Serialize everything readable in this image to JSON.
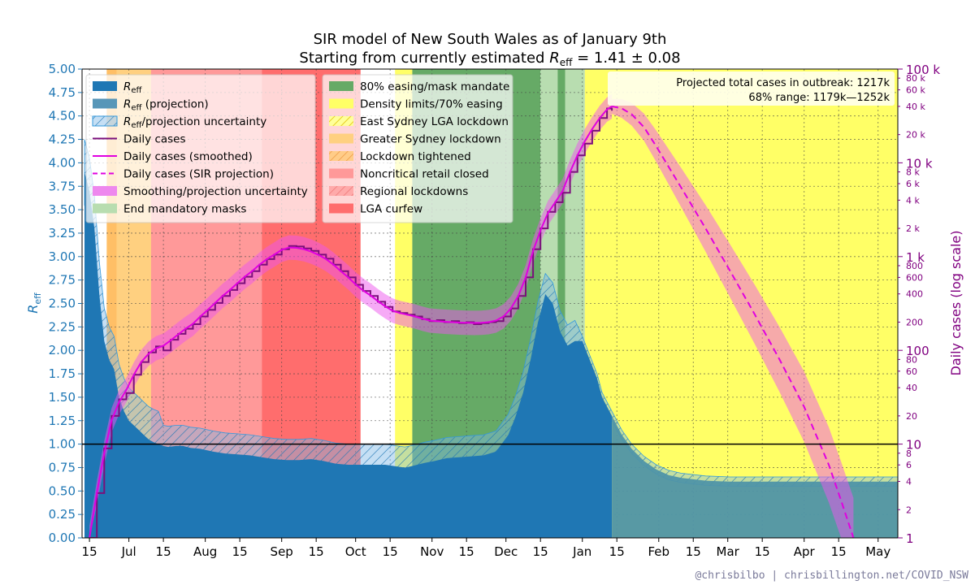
{
  "chart_data": {
    "type": "area",
    "title": "SIR model of New South Wales as of January 9th",
    "subtitle": "Starting from currently estimated R_eff = 1.41 ± 0.08",
    "subtitle_prefix": "Starting from currently estimated ",
    "subtitle_symbol": "R",
    "subtitle_sub": "eff",
    "subtitle_suffix": " = 1.41 ± 0.08",
    "ylabel_left": "R",
    "ylabel_left_sub": "eff",
    "ylabel_right": "Daily cases (log scale)",
    "ylim_left": [
      0,
      5
    ],
    "ylim_right_log": [
      1,
      100000
    ],
    "xlim_days": [
      -3,
      328
    ],
    "x_origin": "2021-06-15",
    "left_ticks": [
      "0.00",
      "0.25",
      "0.50",
      "0.75",
      "1.00",
      "1.25",
      "1.50",
      "1.75",
      "2.00",
      "2.25",
      "2.50",
      "2.75",
      "3.00",
      "3.25",
      "3.50",
      "3.75",
      "4.00",
      "4.25",
      "4.50",
      "4.75",
      "5.00"
    ],
    "x_ticks": [
      {
        "d": 0,
        "label": "15"
      },
      {
        "d": 16,
        "label": "Jul"
      },
      {
        "d": 30,
        "label": "15"
      },
      {
        "d": 47,
        "label": "Aug"
      },
      {
        "d": 61,
        "label": "15"
      },
      {
        "d": 78,
        "label": "Sep"
      },
      {
        "d": 92,
        "label": "15"
      },
      {
        "d": 108,
        "label": "Oct"
      },
      {
        "d": 122,
        "label": "15"
      },
      {
        "d": 139,
        "label": "Nov"
      },
      {
        "d": 153,
        "label": "15"
      },
      {
        "d": 169,
        "label": "Dec"
      },
      {
        "d": 183,
        "label": "15"
      },
      {
        "d": 200,
        "label": "Jan"
      },
      {
        "d": 214,
        "label": "15"
      },
      {
        "d": 231,
        "label": "Feb"
      },
      {
        "d": 245,
        "label": "15"
      },
      {
        "d": 259,
        "label": "Mar"
      },
      {
        "d": 273,
        "label": "15"
      },
      {
        "d": 290,
        "label": "Apr"
      },
      {
        "d": 304,
        "label": "15"
      },
      {
        "d": 320,
        "label": "May"
      }
    ],
    "right_major_ticks": [
      {
        "v": 1,
        "label": "1"
      },
      {
        "v": 10,
        "label": "10"
      },
      {
        "v": 100,
        "label": "100"
      },
      {
        "v": 1000,
        "label": "1 k"
      },
      {
        "v": 10000,
        "label": "10 k"
      },
      {
        "v": 100000,
        "label": "100 k"
      }
    ],
    "right_minor_ticks": [
      {
        "v": 2,
        "label": "2"
      },
      {
        "v": 4,
        "label": "4"
      },
      {
        "v": 6,
        "label": "6"
      },
      {
        "v": 8,
        "label": "8"
      },
      {
        "v": 20,
        "label": "20"
      },
      {
        "v": 40,
        "label": "40"
      },
      {
        "v": 60,
        "label": "60"
      },
      {
        "v": 80,
        "label": "80"
      },
      {
        "v": 200,
        "label": "200"
      },
      {
        "v": 400,
        "label": "400"
      },
      {
        "v": 600,
        "label": "600"
      },
      {
        "v": 800,
        "label": "800"
      },
      {
        "v": 2000,
        "label": "2 k"
      },
      {
        "v": 4000,
        "label": "4 k"
      },
      {
        "v": 6000,
        "label": "6 k"
      },
      {
        "v": 8000,
        "label": "8 k"
      },
      {
        "v": 20000,
        "label": "20 k"
      },
      {
        "v": 40000,
        "label": "40 k"
      },
      {
        "v": 60000,
        "label": "60 k"
      },
      {
        "v": 80000,
        "label": "80 k"
      }
    ],
    "restriction_periods": [
      {
        "name": "Lockdown tightened",
        "start": 7,
        "end": 25,
        "color": "#ffbf66"
      },
      {
        "name": "Greater Sydney lockdown",
        "start": 11,
        "end": 25,
        "color": "#ffd080"
      },
      {
        "name": "Noncritical retail closed",
        "start": 25,
        "end": 97,
        "color": "#ff9999"
      },
      {
        "name": "LGA curfew",
        "start": 70,
        "end": 110,
        "color": "#ff6d6d"
      },
      {
        "name": "Density limits/70% easing",
        "start": 124,
        "end": 131,
        "color": "#ffff66"
      },
      {
        "name": "80% easing/mask mandate",
        "start": 131,
        "end": 183,
        "color": "#66aa66"
      },
      {
        "name": "End mandatory masks",
        "start": 183,
        "end": 201,
        "color": "#b8ddb0"
      },
      {
        "name": "80% easing/mask mandate",
        "start": 190,
        "end": 193,
        "color": "#66aa66"
      },
      {
        "name": "Density limits/70% easing",
        "start": 201,
        "end": 328,
        "color": "#ffff66"
      }
    ],
    "series": [
      {
        "name": "R_eff",
        "kind": "area",
        "color": "#1f77b4",
        "x": [
          -2,
          0,
          2,
          4,
          6,
          8,
          10,
          12,
          14,
          16,
          18,
          20,
          22,
          24,
          26,
          28,
          30,
          32,
          35,
          38,
          41,
          45,
          50,
          55,
          60,
          65,
          70,
          75,
          80,
          85,
          90,
          95,
          100,
          105,
          110,
          115,
          120,
          125,
          128,
          130,
          133,
          136,
          140,
          145,
          150,
          155,
          160,
          165,
          170,
          173,
          176,
          179,
          182,
          185,
          188,
          191,
          194,
          197,
          200,
          203,
          206,
          208,
          212,
          216,
          220,
          225,
          230,
          235,
          240,
          250,
          260,
          270,
          280,
          290,
          300,
          310,
          320,
          328
        ],
        "values": [
          3.9,
          3.7,
          3.3,
          2.6,
          2.1,
          1.9,
          1.8,
          1.5,
          1.35,
          1.25,
          1.2,
          1.15,
          1.1,
          1.05,
          1.02,
          1.0,
          0.98,
          0.97,
          0.98,
          0.98,
          0.96,
          0.95,
          0.92,
          0.9,
          0.89,
          0.88,
          0.86,
          0.84,
          0.83,
          0.83,
          0.84,
          0.82,
          0.79,
          0.78,
          0.78,
          0.78,
          0.78,
          0.76,
          0.75,
          0.76,
          0.78,
          0.8,
          0.82,
          0.85,
          0.86,
          0.87,
          0.88,
          0.92,
          1.1,
          1.3,
          1.55,
          1.9,
          2.3,
          2.6,
          2.5,
          2.2,
          2.05,
          2.1,
          2.1,
          1.9,
          1.7,
          1.5,
          1.3,
          1.1,
          0.95,
          0.82,
          0.73,
          0.67,
          0.64,
          0.61,
          0.6,
          0.6,
          0.6,
          0.6,
          0.6,
          0.6,
          0.6,
          0.6
        ]
      },
      {
        "name": "Daily cases",
        "kind": "step",
        "color": "#7b0f7b",
        "x": [
          0,
          3,
          6,
          9,
          12,
          15,
          18,
          21,
          24,
          27,
          30,
          33,
          36,
          39,
          42,
          45,
          48,
          51,
          54,
          57,
          60,
          63,
          66,
          69,
          72,
          75,
          78,
          81,
          84,
          87,
          90,
          93,
          96,
          99,
          102,
          105,
          108,
          111,
          114,
          117,
          120,
          123,
          126,
          129,
          132,
          135,
          138,
          141,
          144,
          147,
          150,
          153,
          156,
          159,
          162,
          165,
          168,
          171,
          174,
          177,
          180,
          183,
          186,
          189,
          192,
          195,
          198,
          201,
          204,
          207,
          210,
          212
        ],
        "values": [
          1,
          3,
          9,
          20,
          30,
          35,
          55,
          75,
          95,
          110,
          100,
          130,
          150,
          170,
          190,
          230,
          270,
          320,
          380,
          440,
          520,
          610,
          700,
          820,
          940,
          1050,
          1200,
          1300,
          1280,
          1220,
          1150,
          1050,
          950,
          820,
          700,
          600,
          500,
          430,
          380,
          330,
          290,
          260,
          250,
          240,
          230,
          215,
          205,
          210,
          200,
          205,
          195,
          200,
          190,
          195,
          200,
          205,
          230,
          280,
          380,
          600,
          1200,
          2000,
          3000,
          3800,
          4800,
          8000,
          12000,
          16000,
          22000,
          30000,
          38000,
          36000
        ]
      },
      {
        "name": "Daily cases (smoothed)",
        "kind": "line",
        "color": "#e000e0",
        "x": [
          0,
          3,
          6,
          9,
          12,
          15,
          18,
          21,
          24,
          27,
          30,
          33,
          36,
          39,
          42,
          45,
          48,
          51,
          54,
          57,
          60,
          63,
          66,
          69,
          72,
          75,
          78,
          81,
          84,
          87,
          90,
          93,
          96,
          99,
          102,
          105,
          108,
          111,
          114,
          117,
          120,
          123,
          126,
          129,
          132,
          135,
          138,
          141,
          144,
          147,
          150,
          153,
          156,
          159,
          162,
          165,
          168,
          171,
          174,
          177,
          180,
          183,
          186,
          189,
          192,
          195,
          198,
          201,
          204,
          207,
          210,
          212
        ],
        "values": [
          1,
          3,
          8,
          18,
          28,
          38,
          55,
          75,
          92,
          105,
          112,
          128,
          148,
          170,
          192,
          230,
          270,
          320,
          380,
          440,
          520,
          610,
          700,
          820,
          940,
          1050,
          1180,
          1250,
          1240,
          1200,
          1130,
          1040,
          940,
          820,
          700,
          600,
          505,
          435,
          385,
          335,
          295,
          265,
          250,
          240,
          230,
          218,
          208,
          205,
          202,
          200,
          198,
          197,
          196,
          197,
          200,
          208,
          230,
          280,
          380,
          600,
          1150,
          1900,
          2900,
          3800,
          5000,
          8000,
          12000,
          17000,
          23000,
          30000,
          37000,
          40000
        ]
      },
      {
        "name": "Daily cases (SIR projection)",
        "kind": "dashed",
        "color": "#e000e0",
        "x": [
          212,
          216,
          220,
          225,
          230,
          240,
          250,
          260,
          270,
          280,
          290,
          300,
          305,
          310
        ],
        "values": [
          40000,
          38000,
          33000,
          24000,
          15000,
          5500,
          2000,
          700,
          240,
          80,
          25,
          6,
          2.5,
          1
        ]
      }
    ],
    "legend_left": [
      {
        "label": "R",
        "sub": "eff",
        "suffix": "",
        "style": "patch",
        "color": "#1f77b4"
      },
      {
        "label": "R",
        "sub": "eff",
        "suffix": " (projection)",
        "style": "patch",
        "color": "#5796b8"
      },
      {
        "label": "R",
        "sub": "eff",
        "suffix": "/projection uncertainty",
        "style": "hatch",
        "color": "#88ccee"
      },
      {
        "label": "Daily cases",
        "sub": "",
        "suffix": "",
        "style": "line",
        "color": "#7b0f7b"
      },
      {
        "label": "Daily cases (smoothed)",
        "sub": "",
        "suffix": "",
        "style": "line",
        "color": "#e000e0"
      },
      {
        "label": "Daily cases (SIR projection)",
        "sub": "",
        "suffix": "",
        "style": "dashed",
        "color": "#e000e0"
      },
      {
        "label": "Smoothing/projection uncertainty",
        "sub": "",
        "suffix": "",
        "style": "patch",
        "color": "#ee88ee"
      },
      {
        "label": "End mandatory masks",
        "sub": "",
        "suffix": "",
        "style": "patch",
        "color": "#b8ddb0"
      }
    ],
    "legend_right": [
      {
        "label": "80% easing/mask mandate",
        "style": "patch",
        "color": "#66aa66"
      },
      {
        "label": "Density limits/70% easing",
        "style": "patch",
        "color": "#ffff66"
      },
      {
        "label": "East Sydney LGA lockdown",
        "style": "hatch",
        "color": "#ffff66"
      },
      {
        "label": "Greater Sydney lockdown",
        "style": "patch",
        "color": "#ffd080"
      },
      {
        "label": "Lockdown tightened",
        "style": "hatch",
        "color": "#ffbf66"
      },
      {
        "label": "Noncritical retail closed",
        "style": "patch",
        "color": "#ff9999"
      },
      {
        "label": "Regional lockdowns",
        "style": "hatch",
        "color": "#ff9999"
      },
      {
        "label": "LGA curfew",
        "style": "patch",
        "color": "#ff6d6d"
      }
    ],
    "annotation_line1": "Projected total cases in outbreak:  1217k",
    "annotation_line2": "68% range:  1179k—1252k",
    "credit": "@chrisbilbo | chrisbillington.net/COVID_NSW"
  }
}
